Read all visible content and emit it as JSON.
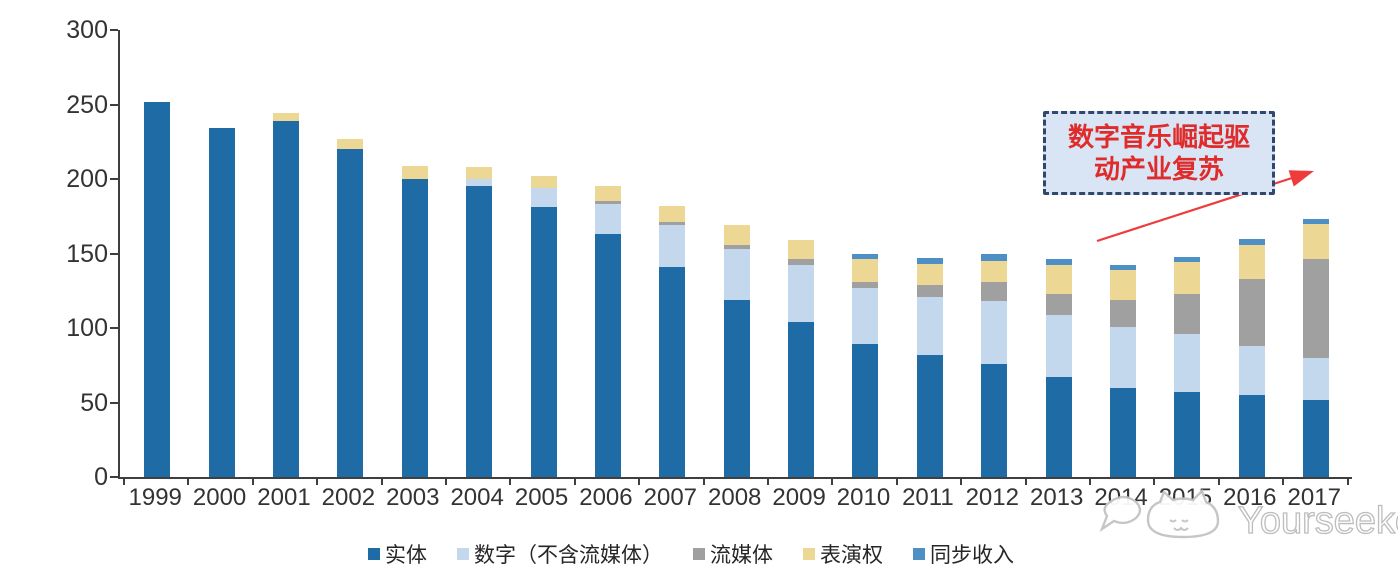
{
  "chart_data": {
    "type": "bar",
    "stacked": true,
    "title": "",
    "categories": [
      "1999",
      "2000",
      "2001",
      "2002",
      "2003",
      "2004",
      "2005",
      "2006",
      "2007",
      "2008",
      "2009",
      "2010",
      "2011",
      "2012",
      "2013",
      "2014",
      "2015",
      "2016",
      "2017"
    ],
    "series": [
      {
        "name": "实体",
        "color": "#1f6ba6",
        "values": [
          252,
          234,
          239,
          220,
          200,
          195,
          181,
          163,
          141,
          119,
          104,
          89,
          82,
          76,
          67,
          60,
          57,
          55,
          52
        ]
      },
      {
        "name": "数字（不含流媒体）",
        "color": "#c3d8ec",
        "values": [
          0,
          0,
          0,
          0,
          0,
          5,
          13,
          20,
          28,
          34,
          38,
          38,
          39,
          42,
          42,
          41,
          39,
          33,
          28
        ]
      },
      {
        "name": "流媒体",
        "color": "#a0a0a0",
        "values": [
          0,
          0,
          0,
          0,
          0,
          0,
          0,
          2,
          2,
          3,
          4,
          4,
          8,
          13,
          14,
          18,
          27,
          45,
          66
        ]
      },
      {
        "name": "表演权",
        "color": "#edd795",
        "values": [
          0,
          0,
          5,
          7,
          9,
          8,
          8,
          10,
          11,
          13,
          13,
          15,
          14,
          14,
          19,
          20,
          21,
          23,
          24
        ]
      },
      {
        "name": "同步收入",
        "color": "#4e8fc5",
        "values": [
          0,
          0,
          0,
          0,
          0,
          0,
          0,
          0,
          0,
          0,
          0,
          4,
          4,
          5,
          4,
          3,
          4,
          4,
          3
        ]
      }
    ],
    "ylim": [
      0,
      300
    ],
    "y_ticks": [
      300,
      250,
      200,
      150,
      100,
      50,
      0
    ],
    "grid": false,
    "legend_position": "bottom"
  },
  "annotation": {
    "line1": "数字音乐崛起驱",
    "line2": "动产业复苏",
    "box_fill": "#d9e5f4",
    "border_color": "#31476e",
    "text_color": "#e02b2b",
    "arrow_color": "#ef3b3b"
  },
  "watermark": {
    "text": "Yourseeker",
    "color": "#bdbdbd"
  }
}
